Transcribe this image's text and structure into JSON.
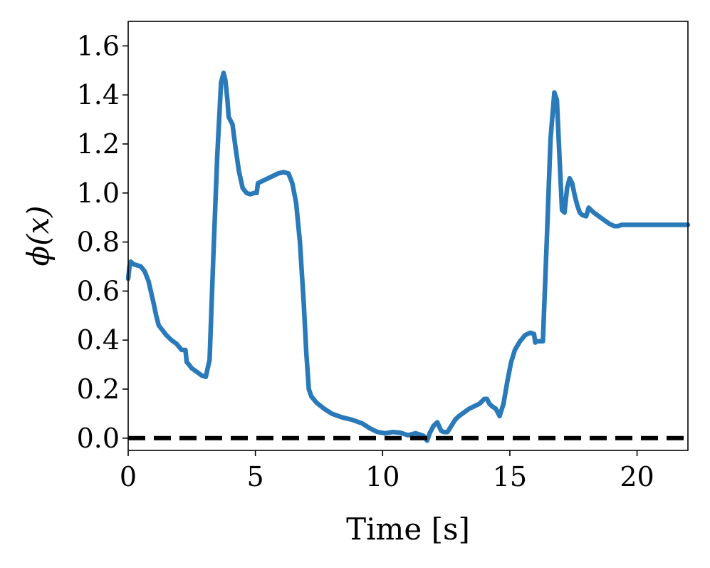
{
  "chart_data": {
    "type": "line",
    "title": "",
    "xlabel": "Time [s]",
    "ylabel": "ϕ(x)",
    "xlim": [
      0,
      22
    ],
    "ylim": [
      -0.05,
      1.7
    ],
    "xticks": [
      0,
      5,
      10,
      15,
      20
    ],
    "xtick_labels": [
      "0",
      "5",
      "10",
      "15",
      "20"
    ],
    "yticks": [
      0.0,
      0.2,
      0.4,
      0.6,
      0.8,
      1.0,
      1.2,
      1.4,
      1.6
    ],
    "ytick_labels": [
      "0.0",
      "0.2",
      "0.4",
      "0.6",
      "0.8",
      "1.0",
      "1.2",
      "1.4",
      "1.6"
    ],
    "grid": false,
    "legend": "none",
    "colors": {
      "series": "#2a7ab9",
      "reference": "#000000"
    },
    "series": [
      {
        "style": "solid",
        "x": [
          0.0,
          0.05,
          0.1,
          0.2,
          0.35,
          0.5,
          0.65,
          0.8,
          1.0,
          1.1,
          1.2,
          1.35,
          1.5,
          1.7,
          1.9,
          2.1,
          2.25,
          2.3,
          2.35,
          2.5,
          2.7,
          2.9,
          3.05,
          3.2,
          3.35,
          3.5,
          3.65,
          3.75,
          3.82,
          3.9,
          3.95,
          4.0,
          4.1,
          4.2,
          4.35,
          4.5,
          4.65,
          4.8,
          4.95,
          5.05,
          5.1,
          5.3,
          5.5,
          5.7,
          5.9,
          6.1,
          6.3,
          6.45,
          6.6,
          6.75,
          6.9,
          7.0,
          7.1,
          7.2,
          7.4,
          7.7,
          8.0,
          8.4,
          8.8,
          9.2,
          9.5,
          9.8,
          10.1,
          10.4,
          10.7,
          11.0,
          11.3,
          11.6,
          11.75,
          11.85,
          12.0,
          12.15,
          12.3,
          12.4,
          12.55,
          12.7,
          12.85,
          13.0,
          13.2,
          13.4,
          13.6,
          13.8,
          14.0,
          14.1,
          14.2,
          14.3,
          14.45,
          14.6,
          14.75,
          14.9,
          15.05,
          15.2,
          15.4,
          15.6,
          15.8,
          15.95,
          16.0,
          16.05,
          16.3,
          16.45,
          16.6,
          16.75,
          16.85,
          16.95,
          17.05,
          17.15,
          17.25,
          17.35,
          17.45,
          17.55,
          17.65,
          17.75,
          17.85,
          18.0,
          18.1,
          18.15,
          18.3,
          18.5,
          18.7,
          18.9,
          19.1,
          19.25,
          19.4,
          19.7,
          20.0,
          20.5,
          21.0,
          21.5,
          22.0
        ],
        "y": [
          0.65,
          0.7,
          0.72,
          0.71,
          0.705,
          0.7,
          0.68,
          0.64,
          0.55,
          0.5,
          0.46,
          0.44,
          0.42,
          0.4,
          0.385,
          0.36,
          0.36,
          0.31,
          0.305,
          0.285,
          0.27,
          0.255,
          0.25,
          0.32,
          0.75,
          1.15,
          1.45,
          1.49,
          1.46,
          1.38,
          1.31,
          1.3,
          1.28,
          1.2,
          1.09,
          1.02,
          1.0,
          0.995,
          1.0,
          1.0,
          1.04,
          1.05,
          1.06,
          1.07,
          1.08,
          1.085,
          1.08,
          1.04,
          0.96,
          0.8,
          0.55,
          0.35,
          0.2,
          0.17,
          0.145,
          0.12,
          0.1,
          0.085,
          0.075,
          0.06,
          0.04,
          0.025,
          0.02,
          0.025,
          0.022,
          0.012,
          0.02,
          0.01,
          -0.01,
          0.02,
          0.05,
          0.065,
          0.03,
          0.025,
          0.025,
          0.05,
          0.075,
          0.09,
          0.105,
          0.12,
          0.13,
          0.14,
          0.16,
          0.16,
          0.14,
          0.13,
          0.12,
          0.09,
          0.14,
          0.23,
          0.31,
          0.36,
          0.395,
          0.42,
          0.43,
          0.425,
          0.39,
          0.395,
          0.395,
          0.8,
          1.22,
          1.41,
          1.38,
          1.15,
          0.93,
          0.92,
          1.02,
          1.06,
          1.04,
          0.99,
          0.95,
          0.92,
          0.91,
          0.905,
          0.94,
          0.935,
          0.92,
          0.905,
          0.89,
          0.875,
          0.865,
          0.865,
          0.87,
          0.87,
          0.87,
          0.87,
          0.87,
          0.87,
          0.87
        ]
      },
      {
        "style": "dashed",
        "x": [
          0,
          22
        ],
        "y": [
          0,
          0
        ]
      }
    ]
  }
}
